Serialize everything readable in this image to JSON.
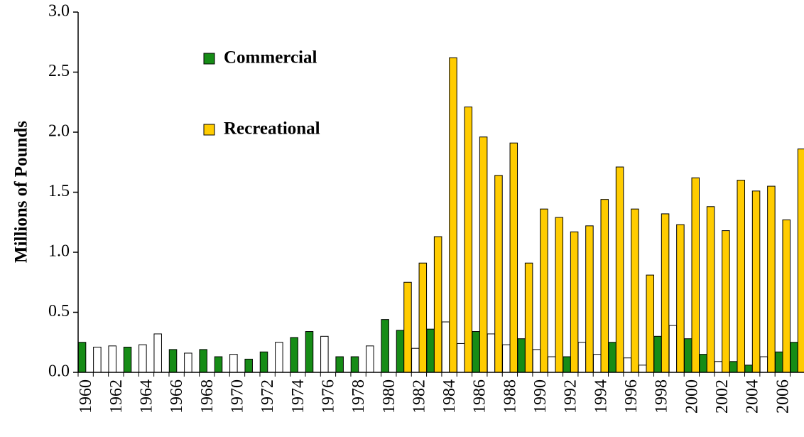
{
  "chart_data": {
    "type": "bar",
    "ylabel": "Millions of Pounds",
    "categories": [
      "1960",
      null,
      "1962",
      null,
      "1964",
      null,
      "1966",
      null,
      "1968",
      null,
      "1970",
      null,
      "1972",
      null,
      "1974",
      null,
      "1976",
      null,
      "1978",
      null,
      "1980",
      null,
      "1982",
      null,
      "1984",
      null,
      "1986",
      null,
      "1988",
      null,
      "1990",
      null,
      "1992",
      null,
      "1994",
      null,
      "1996",
      null,
      "1998",
      null,
      "2000",
      null,
      "2002",
      null,
      "2004",
      null,
      "2006",
      null
    ],
    "series": [
      {
        "name": "Commercial",
        "color": "#168c16",
        "values": [
          0.25,
          0.21,
          0.22,
          0.21,
          0.23,
          0.32,
          0.19,
          0.16,
          0.19,
          0.13,
          0.15,
          0.11,
          0.17,
          0.25,
          0.29,
          0.34,
          0.3,
          0.13,
          0.13,
          0.22,
          0.44,
          0.35,
          0.2,
          0.36,
          0.42,
          0.24,
          0.34,
          0.32,
          0.23,
          0.28,
          0.19,
          0.13,
          0.13,
          0.25,
          0.15,
          0.25,
          0.12,
          0.06,
          0.3,
          0.39,
          0.28,
          0.15,
          0.09,
          0.09,
          0.06,
          0.13,
          0.17,
          0.25
        ],
        "colors": [
          "#168c16",
          "#ffffff",
          "#ffffff",
          "#168c16",
          "#ffffff",
          "#ffffff",
          "#168c16",
          "#ffffff",
          "#168c16",
          "#168c16",
          "#ffffff",
          "#168c16",
          "#168c16",
          "#ffffff",
          "#168c16",
          "#168c16",
          "#ffffff",
          "#168c16",
          "#168c16",
          "#ffffff",
          "#168c16",
          "#168c16",
          "#ffffff",
          "#168c16",
          "#ffffff",
          "#ffffff",
          "#168c16",
          "#ffffff",
          "#ffffff",
          "#168c16",
          "#ffffff",
          "#ffffff",
          "#168c16",
          "#ffffff",
          "#ffffff",
          "#168c16",
          "#ffffff",
          "#ffffff",
          "#168c16",
          "#ffffff",
          "#168c16",
          "#168c16",
          "#ffffff",
          "#168c16",
          "#168c16",
          "#ffffff",
          "#168c16",
          "#168c16"
        ]
      },
      {
        "name": "Recreational",
        "color": "#ffcc00",
        "values": [
          null,
          null,
          null,
          null,
          null,
          null,
          null,
          null,
          null,
          null,
          null,
          null,
          null,
          null,
          null,
          null,
          null,
          null,
          null,
          null,
          null,
          0.75,
          0.91,
          1.13,
          2.62,
          2.21,
          1.96,
          1.64,
          1.91,
          0.91,
          1.36,
          1.29,
          1.17,
          1.22,
          1.44,
          1.71,
          1.36,
          0.81,
          1.32,
          1.23,
          1.62,
          1.38,
          1.18,
          1.6,
          1.51,
          1.55,
          1.27,
          1.86
        ]
      }
    ],
    "ylim": [
      0,
      3
    ],
    "yticks": [
      {
        "value": 0,
        "label": "0.0"
      },
      {
        "value": 0.5,
        "label": "0.5"
      },
      {
        "value": 1,
        "label": "1.0"
      },
      {
        "value": 1.5,
        "label": "1.5"
      },
      {
        "value": 2,
        "label": "2.0"
      },
      {
        "value": 2.5,
        "label": "2.5"
      },
      {
        "value": 3,
        "label": "3.0"
      }
    ],
    "grid": false,
    "legend": "upper left"
  }
}
